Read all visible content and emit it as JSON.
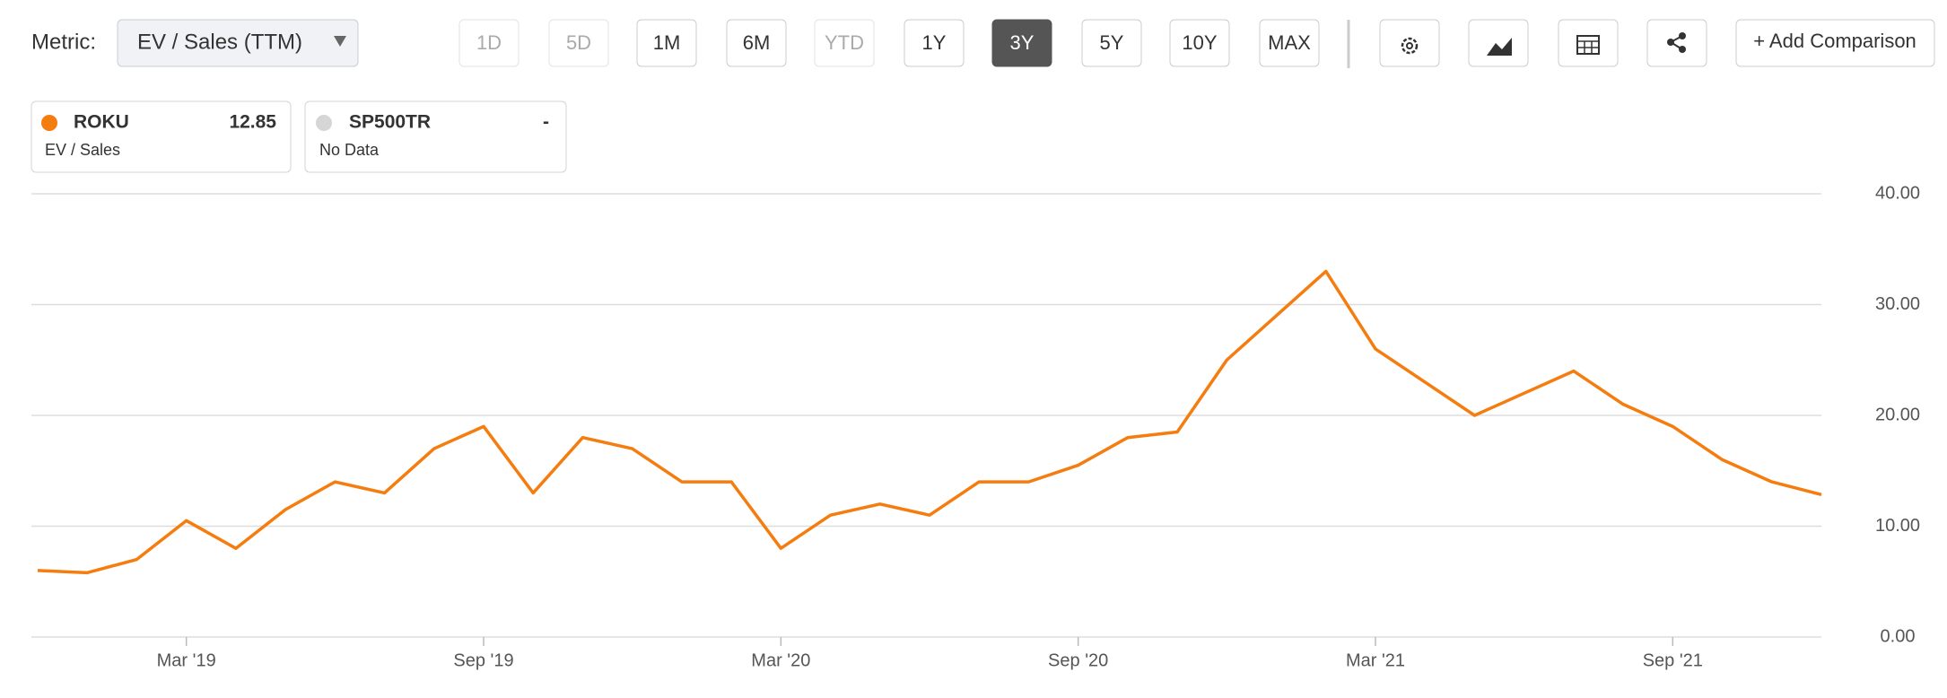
{
  "toolbar": {
    "metric_label": "Metric:",
    "metric": "EV / Sales (TTM)",
    "ranges": [
      "1D",
      "5D",
      "1M",
      "6M",
      "YTD",
      "1Y",
      "3Y",
      "5Y",
      "10Y",
      "MAX"
    ],
    "selected_range": 6,
    "disabled_ranges": [
      0,
      1,
      4
    ],
    "add_comparison": "+ Add Comparison"
  },
  "chart_data": {
    "type": "line",
    "x": [
      "2018-12",
      "2019-01",
      "2019-02",
      "2019-03",
      "2019-04",
      "2019-05",
      "2019-06",
      "2019-07",
      "2019-08",
      "2019-09",
      "2019-10",
      "2019-11",
      "2019-12",
      "2020-01",
      "2020-02",
      "2020-03",
      "2020-04",
      "2020-05",
      "2020-06",
      "2020-07",
      "2020-08",
      "2020-09",
      "2020-10",
      "2020-11",
      "2020-12",
      "2021-01",
      "2021-02",
      "2021-03",
      "2021-04",
      "2021-05",
      "2021-06",
      "2021-07",
      "2021-08",
      "2021-09",
      "2021-10",
      "2021-11",
      "2021-12"
    ],
    "series": [
      {
        "name": "ROKU",
        "color": "#f57c0e",
        "latest": 12.85,
        "subtitle": "EV / Sales",
        "values": [
          6,
          5.8,
          7,
          10.5,
          8,
          11.5,
          14,
          13,
          17,
          19,
          13,
          18,
          17,
          14,
          14,
          8,
          11,
          12,
          11,
          14,
          14,
          15.5,
          18,
          18.5,
          25,
          29,
          33,
          26,
          23,
          20,
          22,
          24,
          21,
          19,
          16,
          14,
          12.85
        ]
      }
    ],
    "comparison": {
      "name": "SP500TR",
      "value": "-",
      "subtitle": "No Data",
      "color": "#d6d6d6"
    },
    "xticks": [
      {
        "value": "2019-03",
        "label": "Mar '19"
      },
      {
        "value": "2019-09",
        "label": "Sep '19"
      },
      {
        "value": "2020-03",
        "label": "Mar '20"
      },
      {
        "value": "2020-09",
        "label": "Sep '20"
      },
      {
        "value": "2021-03",
        "label": "Mar '21"
      },
      {
        "value": "2021-09",
        "label": "Sep '21"
      }
    ],
    "xlim": [
      "2018-12",
      "2021-12"
    ],
    "ylim": [
      0,
      40
    ],
    "yticks": [
      {
        "value": 0,
        "label": "0.00"
      },
      {
        "value": 10,
        "label": "10.00"
      },
      {
        "value": 20,
        "label": "20.00"
      },
      {
        "value": 30,
        "label": "30.00"
      },
      {
        "value": 40,
        "label": "40.00"
      }
    ],
    "grid": true
  }
}
